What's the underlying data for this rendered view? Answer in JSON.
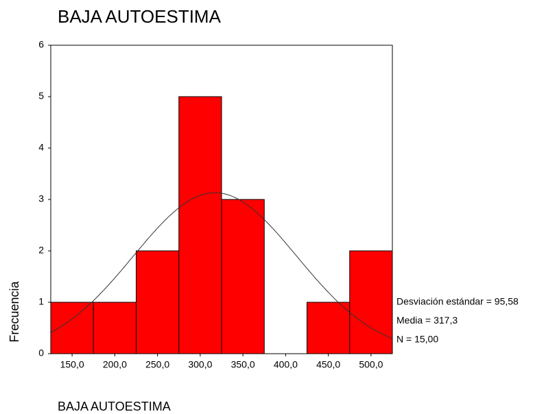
{
  "chart_data": {
    "type": "histogram",
    "title": "BAJA AUTOESTIMA",
    "x_label": "BAJA AUTOESTIMA",
    "y_label": "Frecuencia",
    "bins": [
      125,
      175,
      225,
      275,
      325,
      375,
      425,
      475,
      525
    ],
    "values": [
      1,
      1,
      2,
      5,
      3,
      0,
      1,
      2
    ],
    "color": "#ff0000",
    "xlim": [
      125,
      525
    ],
    "xticks": [
      {
        "value": 150,
        "label": "150,0"
      },
      {
        "value": 200,
        "label": "200,0"
      },
      {
        "value": 250,
        "label": "250,0"
      },
      {
        "value": 300,
        "label": "300,0"
      },
      {
        "value": 350,
        "label": "350,0"
      },
      {
        "value": 400,
        "label": "400,0"
      },
      {
        "value": 450,
        "label": "450,0"
      },
      {
        "value": 500,
        "label": "500,0"
      }
    ],
    "ylim": [
      0,
      6
    ],
    "yticks": [
      0,
      1,
      2,
      3,
      4,
      5,
      6
    ],
    "normal_curve": {
      "mean": 317.3,
      "sd": 95.58,
      "n": 15
    },
    "annotations": [
      "Desviación estándar = 95,58",
      "Media = 317,3",
      "N = 15,00"
    ]
  }
}
